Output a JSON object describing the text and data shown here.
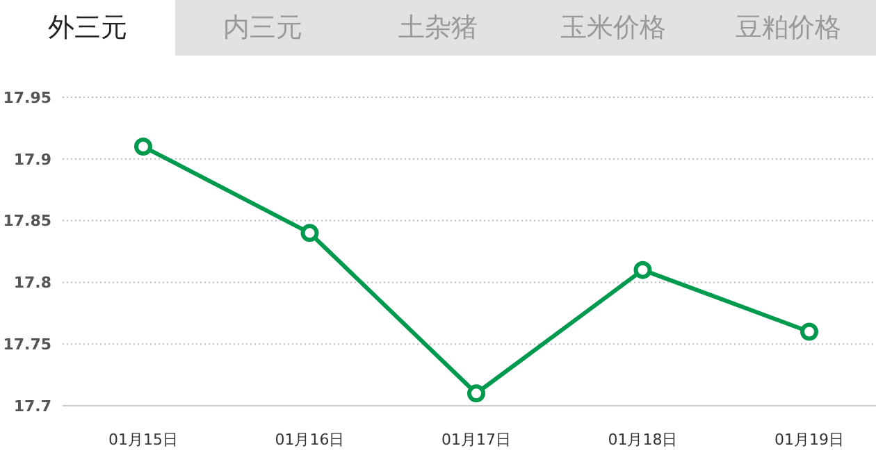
{
  "chart_data": {
    "type": "line",
    "annotations": [
      "外三元",
      "内三元",
      "土杂猪",
      "玉米价格",
      "豆粕价格"
    ],
    "categories": [
      "01月15日",
      "01月16日",
      "01月17日",
      "01月18日",
      "01月19日"
    ],
    "series": [
      {
        "color": "#009a4e",
        "values": [
          17.91,
          17.84,
          17.71,
          17.81,
          17.76
        ]
      }
    ],
    "ylim": [
      17.7,
      17.95
    ],
    "yticks": [
      17.7,
      17.75,
      17.8,
      17.85,
      17.9,
      17.95
    ],
    "grid": "y",
    "marker": "circle",
    "line_style": "solid",
    "legend": false
  }
}
